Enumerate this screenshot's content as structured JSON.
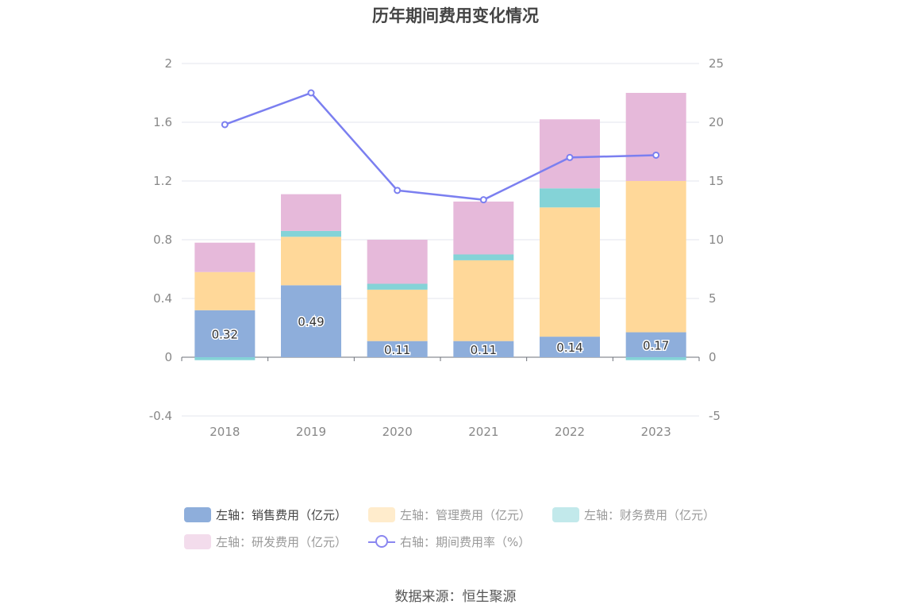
{
  "title": "历年期间费用变化情况",
  "source": "数据来源：恒生聚源",
  "colors": {
    "sales": "#8eaedb",
    "admin": "#ffd899",
    "finance": "#84d3d7",
    "rnd": "#e6b9da",
    "rate": "#7b7ff0"
  },
  "chart_data": {
    "type": "bar",
    "stacked": true,
    "categories": [
      "2018",
      "2019",
      "2020",
      "2021",
      "2022",
      "2023"
    ],
    "series": [
      {
        "key": "sales",
        "name": "左轴：销售费用（亿元）",
        "axis": "left",
        "values": [
          0.32,
          0.49,
          0.11,
          0.11,
          0.14,
          0.17
        ],
        "labels": [
          "0.32",
          "0.49",
          "0.11",
          "0.11",
          "0.14",
          "0.17"
        ]
      },
      {
        "key": "admin",
        "name": "左轴：管理费用（亿元）",
        "axis": "left",
        "values": [
          0.26,
          0.33,
          0.35,
          0.55,
          0.88,
          1.03
        ]
      },
      {
        "key": "finance",
        "name": "左轴：财务费用（亿元）",
        "axis": "left",
        "values": [
          -0.02,
          0.04,
          0.04,
          0.04,
          0.13,
          -0.02
        ]
      },
      {
        "key": "rnd",
        "name": "左轴：研发费用（亿元）",
        "axis": "left",
        "values": [
          0.2,
          0.25,
          0.3,
          0.36,
          0.47,
          0.6
        ]
      },
      {
        "key": "rate",
        "name": "右轴：期间费用率（%）",
        "axis": "right",
        "type": "line",
        "values": [
          19.8,
          22.5,
          14.2,
          13.4,
          17.0,
          17.2
        ]
      }
    ],
    "left_axis": {
      "min": -0.4,
      "max": 2,
      "ticks": [
        "-0.4",
        "0",
        "0.4",
        "0.8",
        "1.2",
        "1.6",
        "2"
      ]
    },
    "right_axis": {
      "min": -5,
      "max": 25,
      "ticks": [
        "-5",
        "0",
        "5",
        "10",
        "15",
        "20",
        "25"
      ]
    },
    "grid": true,
    "legend_position": "bottom"
  }
}
